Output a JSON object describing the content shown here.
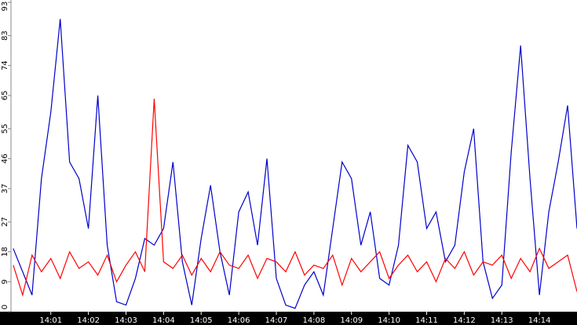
{
  "chart_data": {
    "type": "line",
    "x": [
      0,
      0.25,
      0.5,
      0.75,
      1,
      1.25,
      1.5,
      1.75,
      2,
      2.25,
      2.5,
      2.75,
      3,
      3.25,
      3.5,
      3.75,
      4,
      4.25,
      4.5,
      4.75,
      5,
      5.25,
      5.5,
      5.75,
      6,
      6.25,
      6.5,
      6.75,
      7,
      7.25,
      7.5,
      7.75,
      8,
      8.25,
      8.5,
      8.75,
      9,
      9.25,
      9.5,
      9.75,
      10,
      10.25,
      10.5,
      10.75,
      11,
      11.25,
      11.5,
      11.75,
      12,
      12.25,
      12.5,
      12.75,
      13,
      13.25,
      13.5,
      13.75,
      14,
      14.25,
      14.5,
      14.75,
      15
    ],
    "series": [
      {
        "color": "#0000cc",
        "values": [
          19,
          12,
          5,
          40,
          60,
          88,
          45,
          40,
          25,
          65,
          20,
          3,
          2,
          10,
          22,
          20,
          25,
          45,
          15,
          2,
          22,
          38,
          18,
          5,
          30,
          36,
          20,
          46,
          10,
          2,
          1,
          8,
          12,
          5,
          25,
          45,
          40,
          20,
          30,
          10,
          8,
          20,
          50,
          45,
          25,
          30,
          15,
          20,
          42,
          55,
          15,
          4,
          8,
          48,
          80,
          40,
          5,
          30,
          45,
          62,
          25
        ]
      },
      {
        "color": "#ff0000",
        "values": [
          14,
          5,
          17,
          12,
          16,
          10,
          18,
          13,
          15,
          11,
          17,
          9,
          14,
          18,
          12,
          64,
          15,
          13,
          17,
          11,
          16,
          12,
          18,
          14,
          13,
          17,
          10,
          16,
          15,
          12,
          18,
          11,
          14,
          13,
          17,
          8,
          16,
          12,
          15,
          18,
          10,
          14,
          17,
          12,
          15,
          9,
          16,
          13,
          18,
          11,
          15,
          14,
          17,
          10,
          16,
          12,
          19,
          13,
          15,
          17,
          6
        ]
      }
    ],
    "xlim": [
      -0.06,
      15.0
    ],
    "xticks": [
      {
        "value": 1,
        "label": "14:01"
      },
      {
        "value": 2,
        "label": "14:02"
      },
      {
        "value": 3,
        "label": "14:03"
      },
      {
        "value": 4,
        "label": "14:04"
      },
      {
        "value": 5,
        "label": "14:05"
      },
      {
        "value": 6,
        "label": "14:06"
      },
      {
        "value": 7,
        "label": "14:07"
      },
      {
        "value": 8,
        "label": "14:08"
      },
      {
        "value": 9,
        "label": "14:09"
      },
      {
        "value": 10,
        "label": "14:10"
      },
      {
        "value": 11,
        "label": "14:11"
      },
      {
        "value": 12,
        "label": "14:12"
      },
      {
        "value": 13,
        "label": "14:13"
      },
      {
        "value": 14,
        "label": "14:14"
      }
    ],
    "ylim": [
      0,
      93
    ],
    "yticks": [
      0,
      9,
      18,
      27,
      37,
      46,
      55,
      65,
      74,
      83,
      93
    ]
  }
}
